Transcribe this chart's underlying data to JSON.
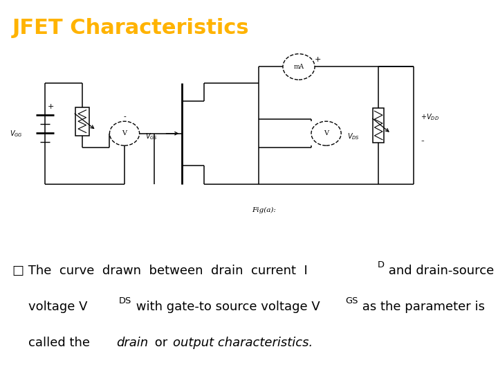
{
  "title": "JFET Characteristics",
  "title_color": "#FFB300",
  "title_bg": "#000000",
  "slide_bg": "#FFFFFF",
  "fig_caption": "Fig(a):",
  "body_line1a": "■ The  curve  drawn  between  drain  current  I",
  "body_line1b": "D",
  "body_line1c": " and drain-source",
  "body_line2a": "   voltage V",
  "body_line2b": "DS",
  "body_line2c": " with gate-to source voltage V",
  "body_line2d": "GS",
  "body_line2e": " as the parameter is",
  "body_line3a": "   called the ",
  "body_line3b": "drain",
  "body_line3c": " or ",
  "body_line3d": "output characteristics."
}
